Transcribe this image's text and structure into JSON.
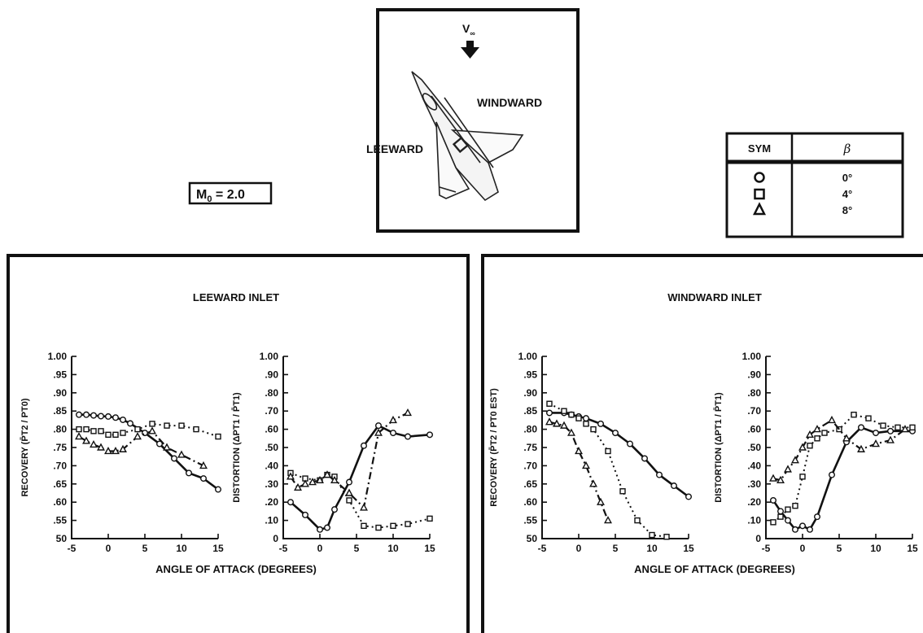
{
  "figure": {
    "mach_label": "M",
    "mach_sub": "0",
    "mach_value": " = 2.0",
    "freestream_label": "V",
    "freestream_sub": "∞",
    "leeward_label": "LEEWARD",
    "windward_label": "WINDWARD"
  },
  "legend": {
    "headers": [
      "SYM",
      "β"
    ],
    "rows": [
      {
        "symbol": "circle",
        "value": "0°"
      },
      {
        "symbol": "square",
        "value": "4°"
      },
      {
        "symbol": "triangle",
        "value": "8°"
      }
    ]
  },
  "panels": [
    {
      "title": "LEEWARD INLET",
      "xlabel": "ANGLE OF ATTACK (DEGREES)"
    },
    {
      "title": "WINDWARD INLET",
      "xlabel": "ANGLE OF ATTACK (DEGREES)"
    }
  ],
  "chart_data": [
    {
      "type": "line",
      "panel": "LEEWARD INLET",
      "ylabel": "RECOVERY (P̄T2 / PT0)",
      "xlim": [
        -5,
        15
      ],
      "ylim": [
        0.5,
        1.0
      ],
      "xticks": [
        "-5",
        "0",
        "5",
        "10",
        "15"
      ],
      "yticks": [
        "50",
        ".55",
        ".60",
        ".65",
        ".70",
        ".75",
        ".80",
        ".85",
        ".90",
        ".95",
        "1.00"
      ],
      "series": [
        {
          "beta": "0°",
          "marker": "circle",
          "line": "solid",
          "x": [
            -4,
            -3,
            -2,
            -1,
            0,
            1,
            2,
            3,
            5,
            7,
            9,
            11,
            13,
            15
          ],
          "y": [
            0.84,
            0.84,
            0.838,
            0.836,
            0.835,
            0.832,
            0.826,
            0.816,
            0.79,
            0.76,
            0.72,
            0.68,
            0.665,
            0.635
          ]
        },
        {
          "beta": "4°",
          "marker": "square",
          "line": "dotted",
          "x": [
            -4,
            -3,
            -2,
            -1,
            0,
            1,
            2,
            4,
            6,
            8,
            10,
            12,
            15
          ],
          "y": [
            0.8,
            0.8,
            0.795,
            0.795,
            0.785,
            0.785,
            0.79,
            0.8,
            0.815,
            0.81,
            0.81,
            0.8,
            0.78
          ]
        },
        {
          "beta": "8°",
          "marker": "triangle",
          "line": "dash-dot",
          "x": [
            -4,
            -3,
            -2,
            -1,
            0,
            1,
            2,
            4,
            6,
            8,
            10,
            13
          ],
          "y": [
            0.78,
            0.768,
            0.758,
            0.75,
            0.74,
            0.74,
            0.745,
            0.78,
            0.795,
            0.75,
            0.73,
            0.7
          ]
        }
      ]
    },
    {
      "type": "line",
      "panel": "LEEWARD INLET",
      "ylabel": "DISTORTION (ΔPT1 / P̄T1)",
      "xlim": [
        -5,
        15
      ],
      "ylim": [
        0,
        1.0
      ],
      "xticks": [
        "-5",
        "0",
        "5",
        "10",
        "15"
      ],
      "yticks": [
        "0",
        ".10",
        ".20",
        ".30",
        ".40",
        ".50",
        ".60",
        ".70",
        ".80",
        ".90",
        "1.00"
      ],
      "series": [
        {
          "beta": "0°",
          "marker": "circle",
          "line": "solid",
          "x": [
            -4,
            -2,
            0,
            1,
            2,
            4,
            6,
            8,
            10,
            12,
            15
          ],
          "y": [
            0.2,
            0.13,
            0.05,
            0.06,
            0.16,
            0.31,
            0.51,
            0.62,
            0.58,
            0.56,
            0.57
          ]
        },
        {
          "beta": "4°",
          "marker": "square",
          "line": "dotted",
          "x": [
            -4,
            -2,
            0,
            1,
            2,
            4,
            6,
            8,
            10,
            12,
            15
          ],
          "y": [
            0.36,
            0.33,
            0.32,
            0.35,
            0.34,
            0.21,
            0.07,
            0.06,
            0.07,
            0.08,
            0.11
          ]
        },
        {
          "beta": "8°",
          "marker": "triangle",
          "line": "dash-dot",
          "x": [
            -4,
            -3,
            -2,
            -1,
            0,
            1,
            2,
            4,
            6,
            8,
            10,
            12
          ],
          "y": [
            0.34,
            0.28,
            0.3,
            0.31,
            0.32,
            0.35,
            0.32,
            0.25,
            0.17,
            0.58,
            0.65,
            0.69
          ]
        }
      ]
    },
    {
      "type": "line",
      "panel": "WINDWARD INLET",
      "ylabel": "RECOVERY (P̄T2 / PT0 EST)",
      "xlim": [
        -5,
        15
      ],
      "ylim": [
        0.5,
        1.0
      ],
      "xticks": [
        "-5",
        "0",
        "5",
        "10",
        "15"
      ],
      "yticks": [
        "50",
        ".55",
        ".60",
        ".65",
        ".70",
        ".75",
        ".80",
        ".85",
        ".90",
        ".95",
        "1.00"
      ],
      "series": [
        {
          "beta": "0°",
          "marker": "circle",
          "line": "solid",
          "x": [
            -4,
            -2,
            -1,
            0,
            1,
            3,
            5,
            7,
            9,
            11,
            13,
            15
          ],
          "y": [
            0.845,
            0.845,
            0.84,
            0.835,
            0.83,
            0.815,
            0.79,
            0.76,
            0.72,
            0.675,
            0.645,
            0.615
          ]
        },
        {
          "beta": "4°",
          "marker": "square",
          "line": "dotted",
          "x": [
            -4,
            -2,
            -1,
            0,
            1,
            2,
            4,
            6,
            8,
            10,
            12
          ],
          "y": [
            0.87,
            0.85,
            0.84,
            0.83,
            0.815,
            0.8,
            0.74,
            0.63,
            0.55,
            0.51,
            0.505
          ]
        },
        {
          "beta": "8°",
          "marker": "triangle",
          "line": "dash-dot",
          "x": [
            -4,
            -3,
            -2,
            -1,
            0,
            1,
            2,
            3,
            4
          ],
          "y": [
            0.82,
            0.815,
            0.81,
            0.79,
            0.74,
            0.7,
            0.65,
            0.6,
            0.55
          ]
        }
      ]
    },
    {
      "type": "line",
      "panel": "WINDWARD INLET",
      "ylabel": "DISTORTION (ΔPT1 / P̄T1)",
      "xlim": [
        -5,
        15
      ],
      "ylim": [
        0,
        1.0
      ],
      "xticks": [
        "-5",
        "0",
        "5",
        "10",
        "15"
      ],
      "yticks": [
        "0",
        ".10",
        ".20",
        ".30",
        ".40",
        ".50",
        ".60",
        ".70",
        ".80",
        ".90",
        "1.00"
      ],
      "series": [
        {
          "beta": "0°",
          "marker": "circle",
          "line": "solid",
          "x": [
            -4,
            -3,
            -2,
            -1,
            0,
            1,
            2,
            4,
            6,
            8,
            10,
            12,
            15
          ],
          "y": [
            0.21,
            0.15,
            0.1,
            0.05,
            0.07,
            0.05,
            0.12,
            0.35,
            0.53,
            0.61,
            0.58,
            0.59,
            0.59
          ]
        },
        {
          "beta": "4°",
          "marker": "square",
          "line": "dotted",
          "x": [
            -4,
            -3,
            -2,
            -1,
            0,
            1,
            2,
            3,
            5,
            7,
            9,
            11,
            13,
            15
          ],
          "y": [
            0.09,
            0.12,
            0.16,
            0.18,
            0.34,
            0.51,
            0.55,
            0.58,
            0.6,
            0.68,
            0.66,
            0.62,
            0.61,
            0.61
          ]
        },
        {
          "beta": "8°",
          "marker": "triangle",
          "line": "dash-dot",
          "x": [
            -4,
            -3,
            -2,
            -1,
            0,
            1,
            2,
            4,
            6,
            8,
            10,
            12,
            14
          ],
          "y": [
            0.33,
            0.32,
            0.38,
            0.43,
            0.5,
            0.57,
            0.6,
            0.65,
            0.55,
            0.49,
            0.52,
            0.54,
            0.6
          ]
        }
      ]
    }
  ]
}
